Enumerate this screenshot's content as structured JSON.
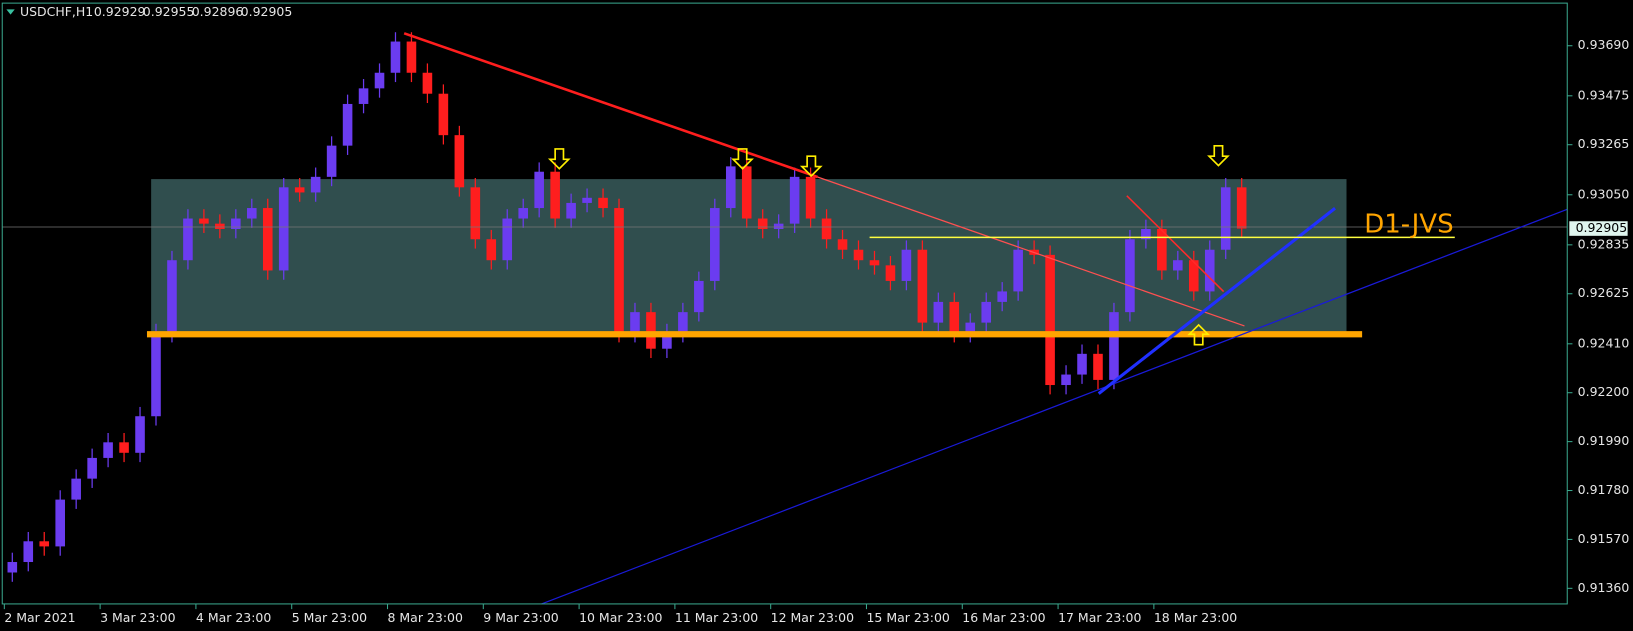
{
  "chart_data": {
    "type": "candlestick",
    "header": {
      "symbol": "USDCHF,H1",
      "open": 0.92929,
      "high": 0.92955,
      "low": 0.92896,
      "close": 0.92905
    },
    "last_price": 0.92905,
    "annotation": "D1-JVS",
    "up_color": "#6b3cf0",
    "down_color": "#ff1e1e",
    "categories": [
      "2 Mar 2021",
      null,
      null,
      null,
      null,
      null,
      "3 Mar 23:00",
      null,
      null,
      null,
      null,
      null,
      "4 Mar 23:00",
      null,
      null,
      null,
      null,
      null,
      "5 Mar 23:00",
      null,
      null,
      null,
      null,
      null,
      "8 Mar 23:00",
      null,
      null,
      null,
      null,
      null,
      "9 Mar 23:00",
      null,
      null,
      null,
      null,
      null,
      "10 Mar 23:00",
      null,
      null,
      null,
      null,
      null,
      "11 Mar 23:00",
      null,
      null,
      null,
      null,
      null,
      "12 Mar 23:00",
      null,
      null,
      null,
      null,
      null,
      "15 Mar 23:00",
      null,
      null,
      null,
      null,
      null,
      "16 Mar 23:00",
      null,
      null,
      null,
      null,
      null,
      "17 Mar 23:00",
      null,
      null,
      null,
      null,
      null,
      "18 Mar 23:00",
      null,
      null,
      null,
      null,
      null
    ],
    "open": [
      0.91428,
      0.91473,
      0.91562,
      0.9154,
      0.91741,
      0.91831,
      0.9192,
      0.91987,
      0.91942,
      0.92099,
      0.92456,
      0.92769,
      0.92948,
      0.92926,
      0.92903,
      0.92948,
      0.92993,
      0.92725,
      0.93082,
      0.9306,
      0.93127,
      0.93261,
      0.9344,
      0.93507,
      0.93574,
      0.93708,
      0.93574,
      0.93484,
      0.93306,
      0.93082,
      0.92859,
      0.92769,
      0.92948,
      0.92993,
      0.93149,
      0.92948,
      0.93015,
      0.93037,
      0.92993,
      0.92456,
      0.92546,
      0.92389,
      0.92456,
      0.92546,
      0.9268,
      0.92993,
      0.93172,
      0.92948,
      0.92903,
      0.92926,
      0.93127,
      0.92948,
      0.92859,
      0.92814,
      0.92769,
      0.92747,
      0.9268,
      0.92814,
      0.92501,
      0.9259,
      0.92456,
      0.92501,
      0.9259,
      0.92635,
      0.92814,
      0.92792,
      0.92233,
      0.92278,
      0.92367,
      0.92255,
      0.92546,
      0.92859,
      0.92903,
      0.92725,
      0.92769,
      0.92635,
      0.92814,
      0.93082
    ],
    "high": [
      0.91513,
      0.91602,
      0.91602,
      0.91781,
      0.91871,
      0.9196,
      0.92027,
      0.92027,
      0.92139,
      0.92496,
      0.92809,
      0.92988,
      0.92988,
      0.92966,
      0.92988,
      0.93033,
      0.93033,
      0.93122,
      0.93122,
      0.93167,
      0.93301,
      0.9348,
      0.93547,
      0.93614,
      0.93748,
      0.93748,
      0.93614,
      0.93524,
      0.93346,
      0.93122,
      0.92899,
      0.92988,
      0.93033,
      0.93189,
      0.93189,
      0.93055,
      0.93077,
      0.93077,
      0.93033,
      0.92586,
      0.92586,
      0.92496,
      0.92586,
      0.9272,
      0.93033,
      0.93212,
      0.93212,
      0.92988,
      0.92966,
      0.93167,
      0.93167,
      0.92988,
      0.92899,
      0.92854,
      0.92809,
      0.92787,
      0.92854,
      0.92854,
      0.9263,
      0.9263,
      0.92541,
      0.9263,
      0.92675,
      0.92854,
      0.92854,
      0.92832,
      0.92318,
      0.92407,
      0.92407,
      0.92586,
      0.92899,
      0.92943,
      0.92943,
      0.92809,
      0.92809,
      0.92854,
      0.93122,
      0.93122
    ],
    "low": [
      0.91388,
      0.91433,
      0.915,
      0.915,
      0.91701,
      0.91791,
      0.9188,
      0.91902,
      0.91902,
      0.92059,
      0.92416,
      0.92729,
      0.92886,
      0.92863,
      0.92863,
      0.92908,
      0.92685,
      0.92685,
      0.9302,
      0.9302,
      0.93087,
      0.93221,
      0.934,
      0.93467,
      0.93534,
      0.93534,
      0.93444,
      0.93266,
      0.93042,
      0.92819,
      0.92729,
      0.92729,
      0.92908,
      0.92953,
      0.92908,
      0.92908,
      0.92975,
      0.92953,
      0.92416,
      0.92416,
      0.92349,
      0.92349,
      0.92416,
      0.92506,
      0.9264,
      0.92953,
      0.92908,
      0.92863,
      0.92863,
      0.92886,
      0.92908,
      0.92819,
      0.92774,
      0.92729,
      0.92707,
      0.9264,
      0.9264,
      0.92461,
      0.92461,
      0.92416,
      0.92416,
      0.92461,
      0.9255,
      0.92595,
      0.92752,
      0.92193,
      0.92193,
      0.92238,
      0.92215,
      0.92215,
      0.92506,
      0.92819,
      0.92685,
      0.92685,
      0.92595,
      0.92595,
      0.92774,
      0.92865
    ],
    "close": [
      0.91473,
      0.91562,
      0.9154,
      0.91741,
      0.91831,
      0.9192,
      0.91987,
      0.91942,
      0.92099,
      0.92456,
      0.92769,
      0.92948,
      0.92926,
      0.92903,
      0.92948,
      0.92993,
      0.92725,
      0.93082,
      0.9306,
      0.93127,
      0.93261,
      0.9344,
      0.93507,
      0.93574,
      0.93708,
      0.93574,
      0.93484,
      0.93306,
      0.93082,
      0.92859,
      0.92769,
      0.92948,
      0.92993,
      0.93149,
      0.92948,
      0.93015,
      0.93037,
      0.92993,
      0.92456,
      0.92546,
      0.92389,
      0.92456,
      0.92546,
      0.9268,
      0.92993,
      0.93172,
      0.92948,
      0.92903,
      0.92926,
      0.93127,
      0.92948,
      0.92859,
      0.92814,
      0.92769,
      0.92747,
      0.9268,
      0.92814,
      0.92501,
      0.9259,
      0.92456,
      0.92501,
      0.9259,
      0.92635,
      0.92814,
      0.92792,
      0.92233,
      0.92278,
      0.92367,
      0.92255,
      0.92546,
      0.92859,
      0.92903,
      0.92725,
      0.92769,
      0.92635,
      0.92814,
      0.93082,
      0.92905
    ],
    "ylim": [
      0.91293,
      0.93873
    ],
    "yticks": [
      {
        "value": 0.9369,
        "label": "0.93690"
      },
      0.93475,
      0.93265,
      {
        "value": 0.9305,
        "label": "0.93050"
      },
      0.92835,
      0.92625,
      {
        "value": 0.9241,
        "label": "0.92410"
      },
      {
        "value": 0.922,
        "label": "0.92200"
      },
      {
        "value": 0.9199,
        "label": "0.91990"
      },
      {
        "value": 0.9178,
        "label": "0.91780"
      },
      {
        "value": 0.9157,
        "label": "0.91570"
      },
      {
        "value": 0.9136,
        "label": "0.91360"
      }
    ]
  }
}
